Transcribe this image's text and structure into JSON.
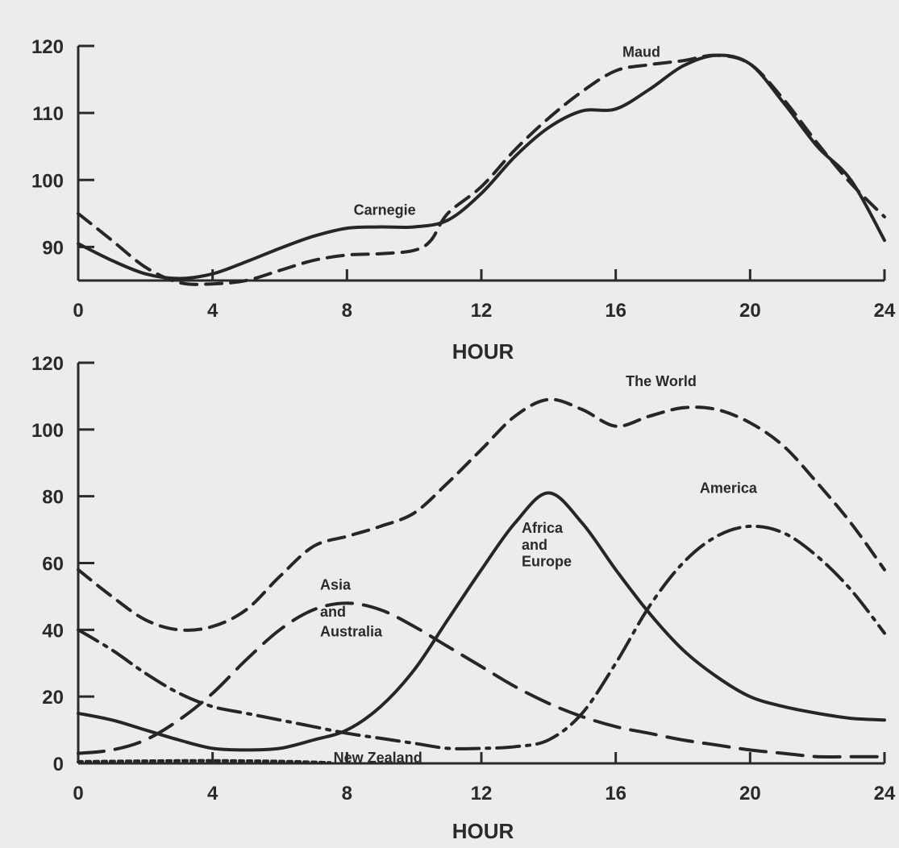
{
  "chart_data": [
    {
      "type": "line",
      "title": "",
      "xlabel": "HOUR",
      "ylabel": "",
      "xlim": [
        0,
        24
      ],
      "ylim": [
        85,
        120
      ],
      "x_ticks": [
        "0",
        "4",
        "8",
        "12",
        "16",
        "20",
        "24"
      ],
      "y_ticks": [
        "90",
        "100",
        "110",
        "120"
      ],
      "y_tick_values": [
        90,
        100,
        110,
        120
      ],
      "grid": false,
      "series": [
        {
          "name": "Carnegie",
          "style": "solid",
          "points": [
            [
              0,
              90.5
            ],
            [
              1,
              88
            ],
            [
              2,
              86
            ],
            [
              3,
              85.3
            ],
            [
              4,
              86
            ],
            [
              5,
              87.8
            ],
            [
              6,
              89.8
            ],
            [
              7,
              91.6
            ],
            [
              8,
              92.8
            ],
            [
              9,
              93
            ],
            [
              10,
              93
            ],
            [
              11,
              94
            ],
            [
              12,
              98
            ],
            [
              13,
              103.5
            ],
            [
              14,
              107.8
            ],
            [
              15,
              110.3
            ],
            [
              16,
              110.6
            ],
            [
              17,
              113.5
            ],
            [
              18,
              117
            ],
            [
              19,
              118.6
            ],
            [
              20,
              117.3
            ],
            [
              21,
              111.5
            ],
            [
              22,
              105
            ],
            [
              23,
              100
            ],
            [
              24,
              91
            ]
          ]
        },
        {
          "name": "Maud",
          "style": "dashed",
          "points": [
            [
              0,
              95
            ],
            [
              1,
              91
            ],
            [
              2,
              87
            ],
            [
              3,
              84.7
            ],
            [
              4,
              84.5
            ],
            [
              5,
              85
            ],
            [
              6,
              86.5
            ],
            [
              7,
              88
            ],
            [
              8,
              88.8
            ],
            [
              9,
              89
            ],
            [
              10,
              89.5
            ],
            [
              10.5,
              91
            ],
            [
              11,
              95
            ],
            [
              12,
              99
            ],
            [
              13,
              104.5
            ],
            [
              14,
              109.2
            ],
            [
              15,
              113.2
            ],
            [
              16,
              116.3
            ],
            [
              17,
              117.2
            ],
            [
              18,
              117.8
            ],
            [
              19,
              118.6
            ],
            [
              20,
              117.3
            ],
            [
              21,
              112
            ],
            [
              22,
              105.5
            ],
            [
              23,
              99.5
            ],
            [
              24,
              94.5
            ]
          ]
        }
      ],
      "labels": [
        {
          "text": "Maud",
          "x": 16.2,
          "y": 118.4
        },
        {
          "text": "Carnegie",
          "x": 8.2,
          "y": 94.8
        }
      ]
    },
    {
      "type": "line",
      "title": "",
      "xlabel": "HOUR",
      "ylabel": "",
      "xlim": [
        0,
        24
      ],
      "ylim": [
        0,
        120
      ],
      "x_ticks": [
        "0",
        "4",
        "8",
        "12",
        "16",
        "20",
        "24"
      ],
      "y_ticks": [
        "0",
        "20",
        "40",
        "60",
        "80",
        "100",
        "120"
      ],
      "y_tick_values": [
        0,
        20,
        40,
        60,
        80,
        100,
        120
      ],
      "grid": false,
      "series": [
        {
          "name": "The World",
          "style": "dashed",
          "points": [
            [
              0,
              58
            ],
            [
              1,
              50
            ],
            [
              2,
              43
            ],
            [
              3,
              40
            ],
            [
              4,
              41
            ],
            [
              5,
              46
            ],
            [
              6,
              56
            ],
            [
              7,
              65
            ],
            [
              8,
              68
            ],
            [
              9,
              71
            ],
            [
              10,
              75
            ],
            [
              11,
              84
            ],
            [
              12,
              94
            ],
            [
              13,
              104
            ],
            [
              14,
              109
            ],
            [
              15,
              106
            ],
            [
              16,
              101
            ],
            [
              17,
              104
            ],
            [
              18,
              106.5
            ],
            [
              19,
              106
            ],
            [
              20,
              102
            ],
            [
              21,
              95
            ],
            [
              22,
              84
            ],
            [
              23,
              72
            ],
            [
              24,
              58
            ]
          ]
        },
        {
          "name": "Africa and Europe",
          "style": "solid",
          "points": [
            [
              0,
              15
            ],
            [
              1,
              13
            ],
            [
              2,
              10
            ],
            [
              3,
              7
            ],
            [
              4,
              4.5
            ],
            [
              5,
              4
            ],
            [
              6,
              4.5
            ],
            [
              7,
              7
            ],
            [
              8,
              10
            ],
            [
              9,
              17
            ],
            [
              10,
              28
            ],
            [
              11,
              43
            ],
            [
              12,
              58
            ],
            [
              13,
              72
            ],
            [
              14,
              81
            ],
            [
              15,
              72
            ],
            [
              16,
              58
            ],
            [
              17,
              45
            ],
            [
              18,
              34
            ],
            [
              19,
              26
            ],
            [
              20,
              20
            ],
            [
              21,
              17
            ],
            [
              22,
              15
            ],
            [
              23,
              13.5
            ],
            [
              24,
              13
            ]
          ]
        },
        {
          "name": "America",
          "style": "dash-dot",
          "points": [
            [
              0,
              40
            ],
            [
              1,
              34
            ],
            [
              2,
              27
            ],
            [
              3,
              21
            ],
            [
              4,
              17
            ],
            [
              5,
              15
            ],
            [
              6,
              13
            ],
            [
              7,
              11
            ],
            [
              8,
              9
            ],
            [
              9,
              7.5
            ],
            [
              10,
              6
            ],
            [
              11,
              4.5
            ],
            [
              12,
              4.5
            ],
            [
              13,
              5
            ],
            [
              14,
              7
            ],
            [
              15,
              15
            ],
            [
              16,
              30
            ],
            [
              17,
              47
            ],
            [
              18,
              60
            ],
            [
              19,
              68
            ],
            [
              20,
              71
            ],
            [
              21,
              69
            ],
            [
              22,
              62
            ],
            [
              23,
              52
            ],
            [
              24,
              39
            ]
          ]
        },
        {
          "name": "Asia and Australia",
          "style": "long-dash",
          "points": [
            [
              0,
              3
            ],
            [
              1,
              4
            ],
            [
              2,
              7
            ],
            [
              3,
              13
            ],
            [
              4,
              21
            ],
            [
              5,
              31
            ],
            [
              6,
              40
            ],
            [
              7,
              46
            ],
            [
              8,
              48
            ],
            [
              9,
              46
            ],
            [
              10,
              41
            ],
            [
              11,
              35
            ],
            [
              12,
              29
            ],
            [
              13,
              23
            ],
            [
              14,
              18
            ],
            [
              15,
              14
            ],
            [
              16,
              11
            ],
            [
              17,
              9
            ],
            [
              18,
              7
            ],
            [
              19,
              5.5
            ],
            [
              20,
              4
            ],
            [
              21,
              3
            ],
            [
              22,
              2
            ],
            [
              23,
              2
            ],
            [
              24,
              2
            ]
          ]
        },
        {
          "name": "New Zealand",
          "style": "dotted",
          "points": [
            [
              0,
              0.5
            ],
            [
              2,
              0.7
            ],
            [
              4,
              0.8
            ],
            [
              6,
              0.6
            ],
            [
              7.5,
              0.2
            ]
          ]
        }
      ],
      "labels": [
        {
          "text": "The World",
          "x": 16.3,
          "y": 113
        },
        {
          "text": "America",
          "x": 18.5,
          "y": 81
        },
        {
          "text": "Africa",
          "x": 13.2,
          "y": 69
        },
        {
          "text": "and",
          "x": 13.2,
          "y": 64
        },
        {
          "text": "Europe",
          "x": 13.2,
          "y": 59
        },
        {
          "text": "Asia",
          "x": 7.2,
          "y": 52
        },
        {
          "text": "and",
          "x": 7.2,
          "y": 44
        },
        {
          "text": "Australia",
          "x": 7.2,
          "y": 38
        },
        {
          "text": "New Zealand",
          "x": 7.6,
          "y": 0.3
        }
      ]
    }
  ]
}
